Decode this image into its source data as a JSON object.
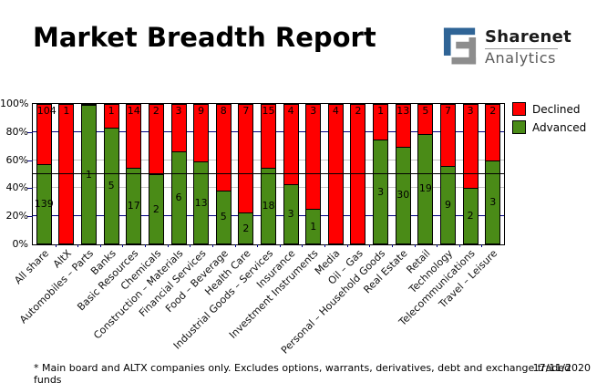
{
  "header": {
    "title": "Market Breadth Report"
  },
  "logo": {
    "name": "Sharenet",
    "sub": "Analytics",
    "mark_blue": "#2f6496",
    "mark_gray": "#8d8d8d"
  },
  "legend": {
    "items": [
      {
        "label": "Declined",
        "color": "#ff0000"
      },
      {
        "label": "Advanced",
        "color": "#4a8b17"
      }
    ]
  },
  "footer": {
    "note": "* Main board and ALTX companies only. Excludes options, warrants, derivatives, debt and exchange traded funds",
    "date": "17/11/2020"
  },
  "chart_data": {
    "type": "bar",
    "stacked_percent": true,
    "title": "Market Breadth Report",
    "categories": [
      "All share",
      "AltX",
      "Automobiles – Parts",
      "Banks",
      "Basic Resources",
      "Chemicals",
      "Construction – Materials",
      "Financial Services",
      "Food – Beverage",
      "Health Care",
      "Industrial Goods – Services",
      "Insurance",
      "Investment Instruments",
      "Media",
      "Oil – Gas",
      "Personal – Household Goods",
      "Real Estate",
      "Retail",
      "Technology",
      "Telecommunications",
      "Travel – Leisure"
    ],
    "series": [
      {
        "name": "Declined",
        "color": "#ff0000",
        "values": [
          104,
          1,
          0,
          1,
          14,
          2,
          3,
          9,
          8,
          7,
          15,
          4,
          3,
          4,
          2,
          1,
          13,
          5,
          7,
          3,
          2
        ]
      },
      {
        "name": "Advanced",
        "color": "#4a8b17",
        "values": [
          139,
          0,
          1,
          5,
          17,
          2,
          6,
          13,
          5,
          2,
          18,
          3,
          1,
          0,
          0,
          3,
          30,
          19,
          9,
          2,
          3
        ]
      }
    ],
    "y_axis": {
      "ticks": [
        "0%",
        "20%",
        "40%",
        "60%",
        "80%",
        "100%"
      ],
      "min": 0,
      "max": 100
    },
    "grid": {
      "major_at": [
        20,
        80
      ],
      "major_color": "#000080",
      "minor_at": [
        40,
        60
      ],
      "minor_color": "#c3c3c3",
      "midline_at": 50,
      "midline_color": "#000000"
    },
    "legend_position": "right"
  }
}
